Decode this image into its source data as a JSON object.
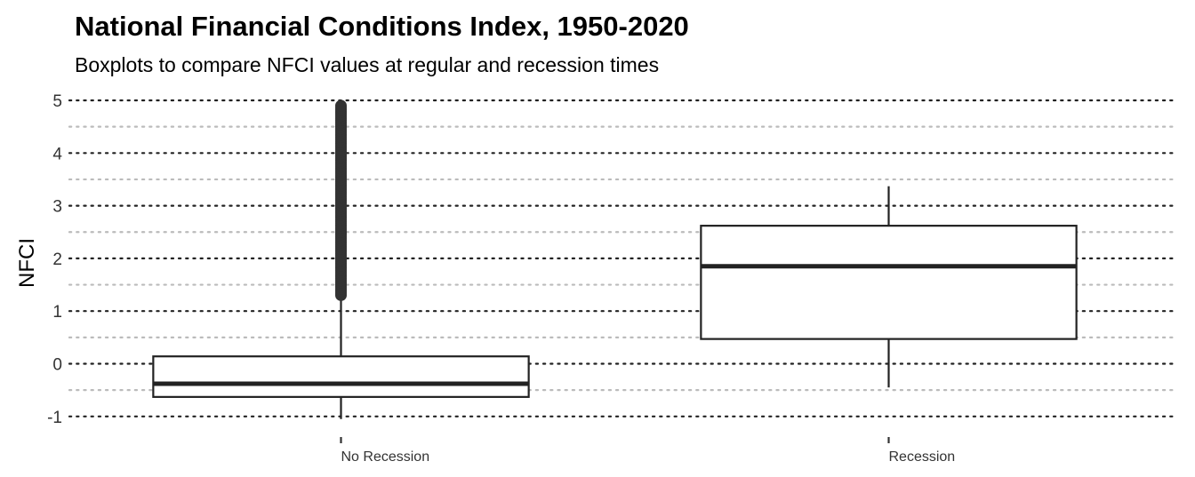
{
  "chart_data": {
    "type": "boxplot",
    "title": "National Financial Conditions Index, 1950-2020",
    "subtitle": "Boxplots to compare NFCI values at regular and recession times",
    "xlabel": "",
    "ylabel": "NFCI",
    "ylim": [
      -1.05,
      5.05
    ],
    "yticks": [
      -1,
      0,
      1,
      2,
      3,
      4,
      5
    ],
    "grid": {
      "major": true,
      "minor": true,
      "style": "dotted"
    },
    "legend": "none",
    "categories": [
      "No Recession",
      "Recession"
    ],
    "boxes": [
      {
        "category": "No Recession",
        "whisker_low": -1.05,
        "q1": -0.63,
        "median": -0.38,
        "q3": 0.14,
        "whisker_high": 1.3,
        "outliers_range": [
          1.3,
          4.9
        ]
      },
      {
        "category": "Recession",
        "whisker_low": -0.45,
        "q1": 0.47,
        "median": 1.85,
        "q3": 2.62,
        "whisker_high": 3.37,
        "outliers_range": null
      }
    ],
    "colors": {
      "box_stroke": "#222222",
      "median": "#222222",
      "outlier": "#333333",
      "major_grid": "#222222",
      "minor_grid": "#bbbbbb",
      "tick_text": "#333333"
    }
  }
}
